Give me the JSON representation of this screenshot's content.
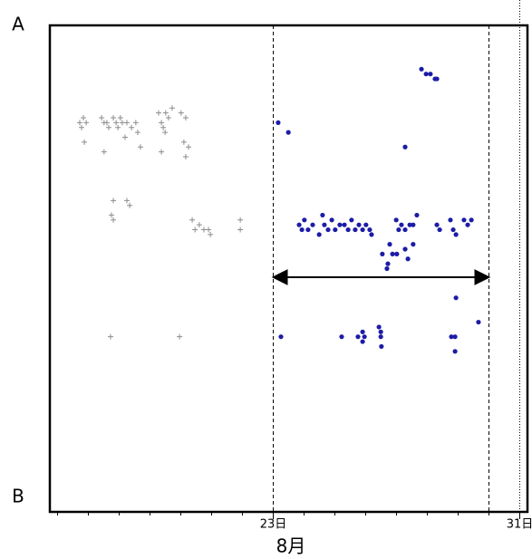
{
  "chart_data": {
    "type": "scatter",
    "xlabel": "8月",
    "xlim": [
      15.75,
      31.25
    ],
    "ylim": [
      0,
      1
    ],
    "xticks": [
      {
        "value": 23,
        "label": "23日"
      },
      {
        "value": 31,
        "label": "31日"
      }
    ],
    "xminorticks": [
      16,
      17,
      18,
      19,
      20,
      21,
      22,
      23,
      24,
      25,
      26,
      27,
      28,
      29,
      30,
      31
    ],
    "yticks": [
      {
        "value": 1,
        "label": "A"
      },
      {
        "value": 0.03,
        "label": "B"
      }
    ],
    "dashed_lines": [
      23,
      30
    ],
    "dotted_lines": [
      31
    ],
    "span": [
      23,
      30
    ],
    "series": [
      {
        "color": "#8c8c8c",
        "marker": "plus",
        "x": [
          16.72,
          16.84,
          16.78,
          16.93,
          16.87,
          17.43,
          17.51,
          17.6,
          17.66,
          17.81,
          17.9,
          17.96,
          18.04,
          18.1,
          18.25,
          18.19,
          18.4,
          18.54,
          18.6,
          18.69,
          17.51,
          19.28,
          19.37,
          19.43,
          19.51,
          19.6,
          19.72,
          19.49,
          19.37,
          20.01,
          20.16,
          20.1,
          20.25,
          20.16,
          17.81,
          17.75,
          17.81,
          18.25,
          18.34,
          20.37,
          20.46,
          20.6,
          20.75,
          20.9,
          20.96,
          21.93,
          21.93,
          17.72,
          19.96
        ],
        "y": [
          0.8,
          0.81,
          0.79,
          0.8,
          0.76,
          0.81,
          0.8,
          0.8,
          0.79,
          0.81,
          0.8,
          0.79,
          0.81,
          0.8,
          0.8,
          0.77,
          0.79,
          0.8,
          0.78,
          0.75,
          0.74,
          0.82,
          0.8,
          0.79,
          0.82,
          0.81,
          0.83,
          0.78,
          0.74,
          0.82,
          0.81,
          0.76,
          0.75,
          0.73,
          0.64,
          0.61,
          0.6,
          0.64,
          0.63,
          0.6,
          0.58,
          0.59,
          0.58,
          0.58,
          0.57,
          0.6,
          0.58,
          0.36,
          0.36
        ]
      },
      {
        "color": "#1c1ca6",
        "marker": "circle",
        "x": [
          23.16,
          23.49,
          27.81,
          27.96,
          28.1,
          28.25,
          28.31,
          27.28,
          23.84,
          23.93,
          24.01,
          24.13,
          24.28,
          24.49,
          24.6,
          24.66,
          24.78,
          24.9,
          25.01,
          25.16,
          25.31,
          25.43,
          25.54,
          25.66,
          25.78,
          25.9,
          26.01,
          26.13,
          26.19,
          26.99,
          27.07,
          27.16,
          27.28,
          27.43,
          27.54,
          27.66,
          28.31,
          28.4,
          28.75,
          28.84,
          28.93,
          29.19,
          29.31,
          29.43,
          26.54,
          26.72,
          26.87,
          26.78,
          27.01,
          27.28,
          27.37,
          27.54,
          26.69,
          28.93,
          29.66,
          23.25,
          25.22,
          25.75,
          25.9,
          25.9,
          25.96,
          26.43,
          26.49,
          26.51,
          26.49,
          28.78,
          28.9,
          28.9
        ],
        "y": [
          0.8,
          0.78,
          0.91,
          0.9,
          0.9,
          0.89,
          0.89,
          0.75,
          0.59,
          0.58,
          0.6,
          0.58,
          0.59,
          0.57,
          0.61,
          0.59,
          0.58,
          0.6,
          0.58,
          0.59,
          0.59,
          0.58,
          0.6,
          0.58,
          0.59,
          0.58,
          0.59,
          0.58,
          0.57,
          0.6,
          0.58,
          0.59,
          0.58,
          0.59,
          0.59,
          0.61,
          0.59,
          0.58,
          0.6,
          0.58,
          0.57,
          0.6,
          0.59,
          0.6,
          0.53,
          0.51,
          0.53,
          0.55,
          0.53,
          0.54,
          0.52,
          0.55,
          0.5,
          0.44,
          0.39,
          0.36,
          0.36,
          0.36,
          0.37,
          0.35,
          0.36,
          0.38,
          0.36,
          0.34,
          0.37,
          0.36,
          0.36,
          0.33
        ]
      }
    ]
  }
}
